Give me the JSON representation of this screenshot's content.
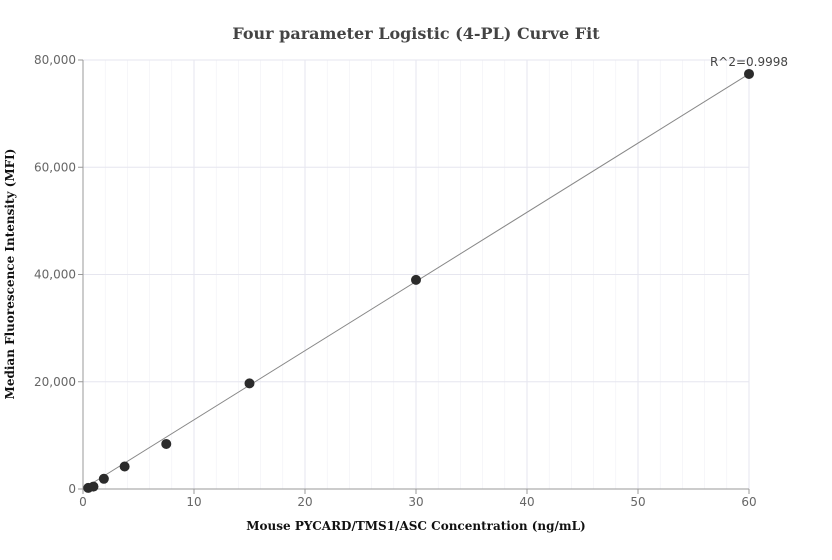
{
  "chart_data": {
    "type": "scatter",
    "title": "Four parameter Logistic (4-PL) Curve Fit",
    "xlabel": "Mouse PYCARD/TMS1/ASC Concentration (ng/mL)",
    "ylabel": "Median Fluorescence Intensity (MFI)",
    "xlim": [
      0,
      60
    ],
    "ylim": [
      0,
      80000
    ],
    "x_ticks": [
      0,
      10,
      20,
      30,
      40,
      50,
      60
    ],
    "y_ticks": [
      0,
      20000,
      40000,
      60000,
      80000
    ],
    "y_tick_labels": [
      "0",
      "20,000",
      "40,000",
      "60,000",
      "80,000"
    ],
    "grid": true,
    "annotation": "R^2=0.9998",
    "series": [
      {
        "x": [
          0.47,
          0.94,
          1.88,
          3.75,
          7.5,
          15,
          30,
          60
        ],
        "y": [
          200,
          450,
          1900,
          4200,
          8400,
          19700,
          39000,
          77400
        ]
      }
    ],
    "fit_line": {
      "x": [
        0,
        60
      ],
      "y": [
        0,
        77400
      ]
    },
    "colors": {
      "points": "#2b2b2b",
      "fit": "#888888",
      "grid": "#e6e6ef"
    }
  }
}
